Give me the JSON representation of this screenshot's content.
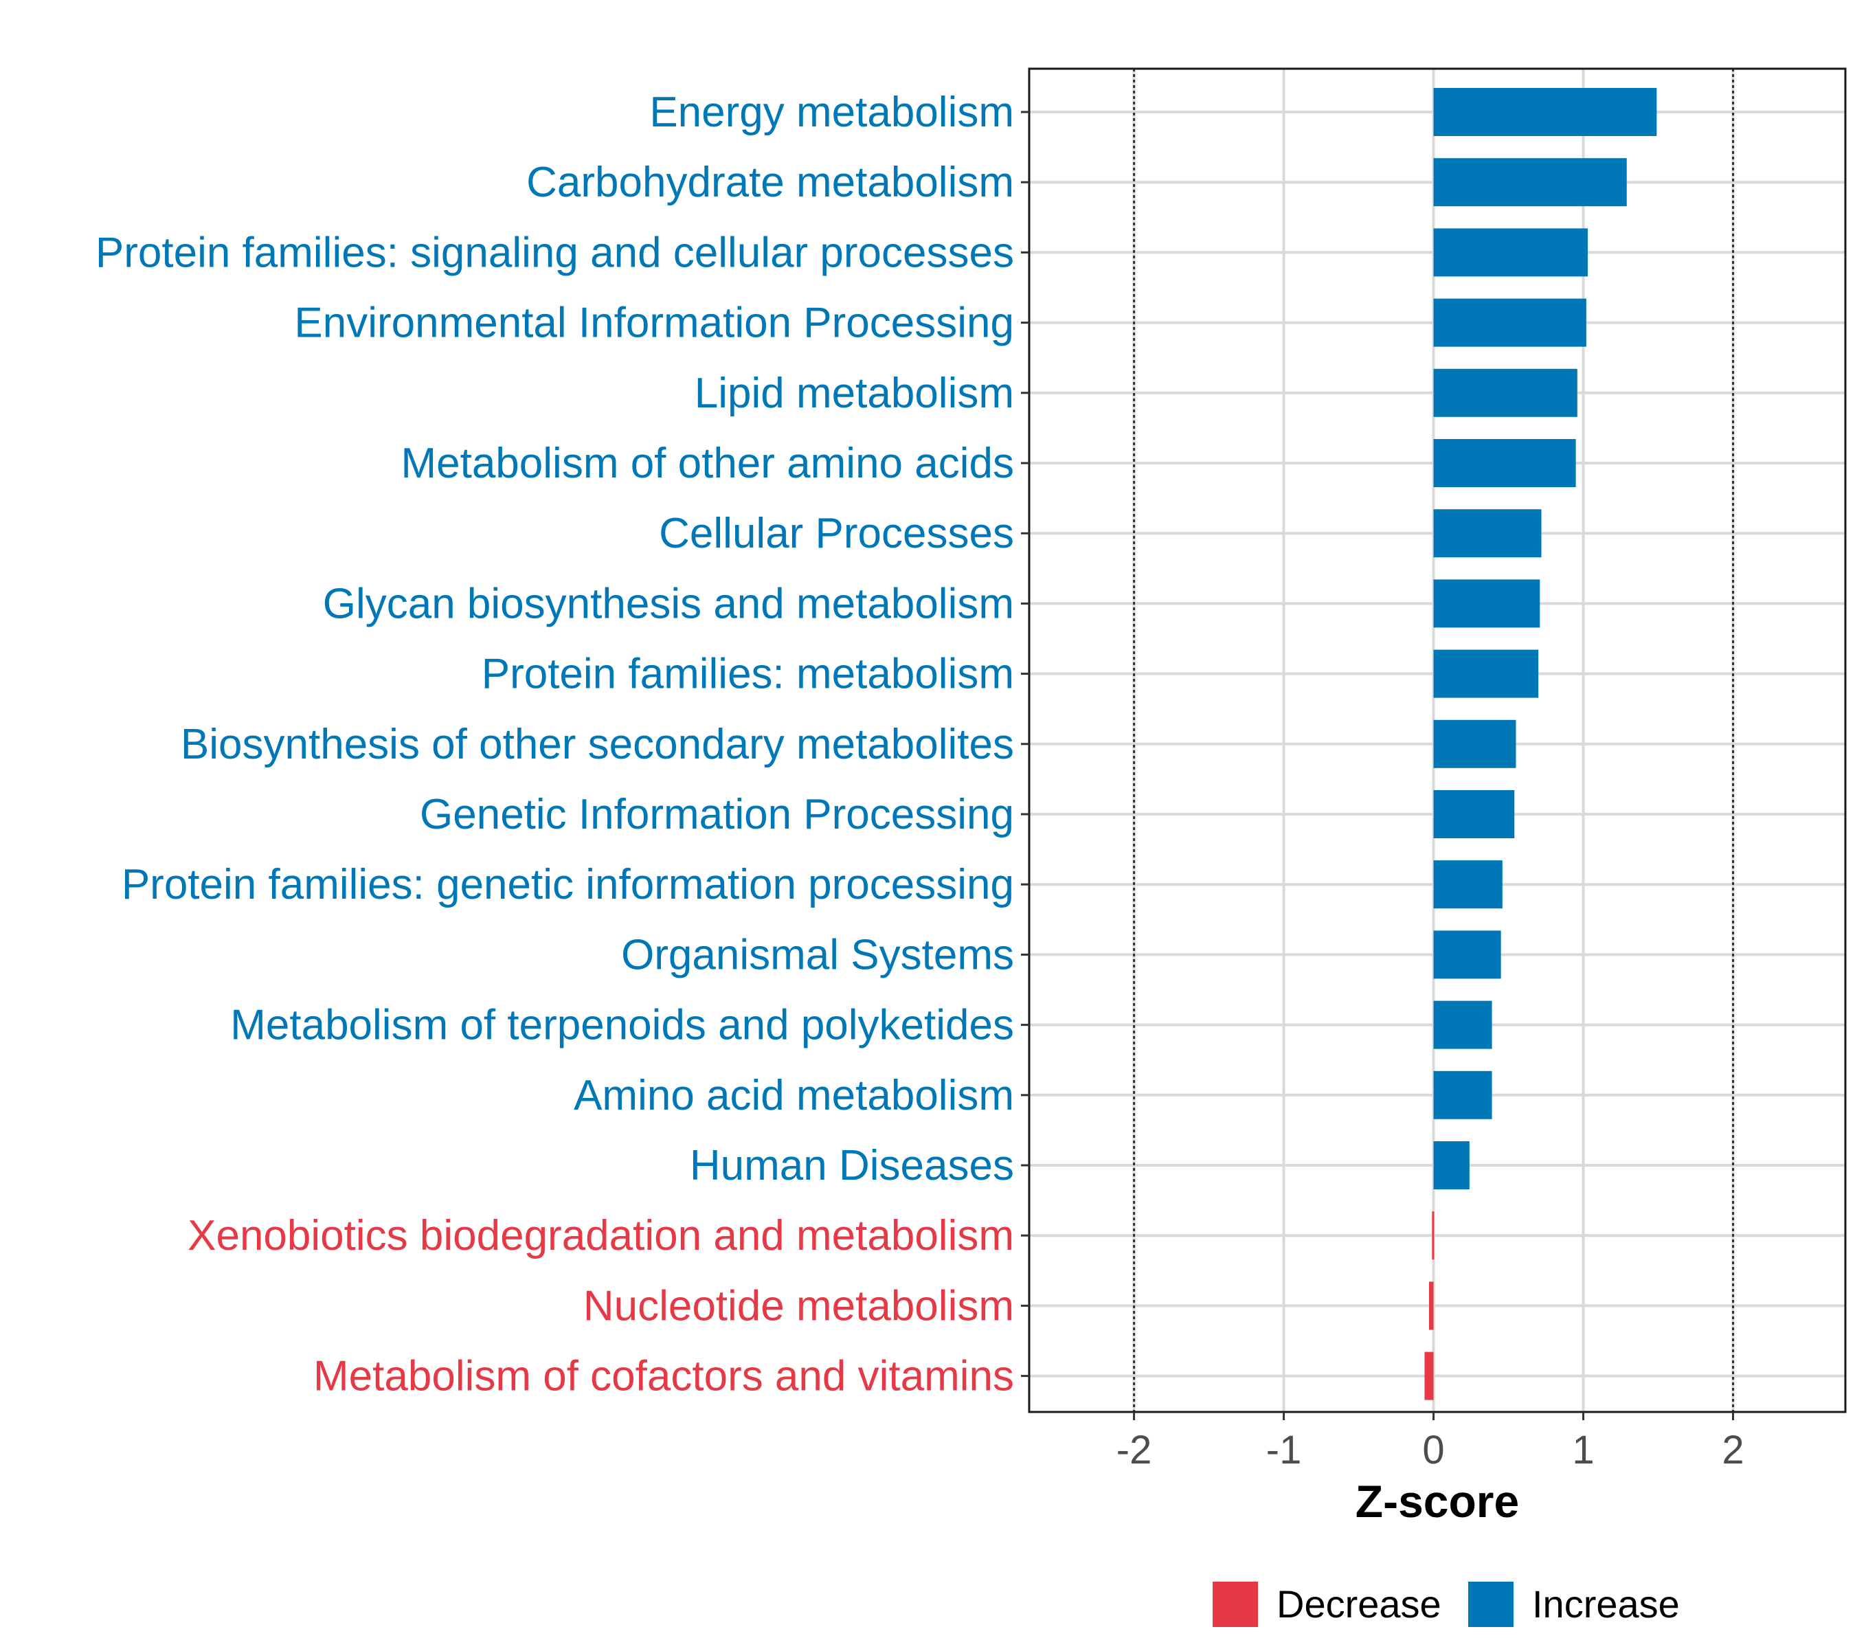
{
  "chart_data": {
    "type": "bar",
    "orientation": "horizontal",
    "title": "",
    "xlabel": "Z-score",
    "ylabel": "",
    "xlim": [
      -2.7,
      2.75
    ],
    "x_ticks": [
      -2,
      -1,
      0,
      1,
      2
    ],
    "x_tick_labels": [
      "-2",
      "-1",
      "0",
      "1",
      "2"
    ],
    "reference_lines": [
      -2,
      2
    ],
    "grid": true,
    "categories": [
      "Energy metabolism",
      "Carbohydrate metabolism",
      "Protein families: signaling and cellular processes",
      "Environmental Information Processing",
      "Lipid metabolism",
      "Metabolism of other amino acids",
      "Cellular Processes",
      "Glycan biosynthesis and metabolism",
      "Protein families: metabolism",
      "Biosynthesis of other secondary metabolites",
      "Genetic Information Processing",
      "Protein families: genetic information processing",
      "Organismal Systems",
      "Metabolism of terpenoids and polyketides",
      "Amino acid metabolism",
      "Human Diseases",
      "Xenobiotics biodegradation and metabolism",
      "Nucleotide metabolism",
      "Metabolism of cofactors and vitamins"
    ],
    "values": [
      1.49,
      1.29,
      1.03,
      1.02,
      0.96,
      0.95,
      0.72,
      0.71,
      0.7,
      0.55,
      0.54,
      0.46,
      0.45,
      0.39,
      0.39,
      0.24,
      -0.01,
      -0.03,
      -0.06
    ],
    "groups": [
      "Increase",
      "Increase",
      "Increase",
      "Increase",
      "Increase",
      "Increase",
      "Increase",
      "Increase",
      "Increase",
      "Increase",
      "Increase",
      "Increase",
      "Increase",
      "Increase",
      "Increase",
      "Increase",
      "Decrease",
      "Decrease",
      "Decrease"
    ],
    "legend": {
      "position": "bottom",
      "entries": [
        {
          "name": "Decrease",
          "color": "#E63946"
        },
        {
          "name": "Increase",
          "color": "#0077B6"
        }
      ]
    }
  }
}
